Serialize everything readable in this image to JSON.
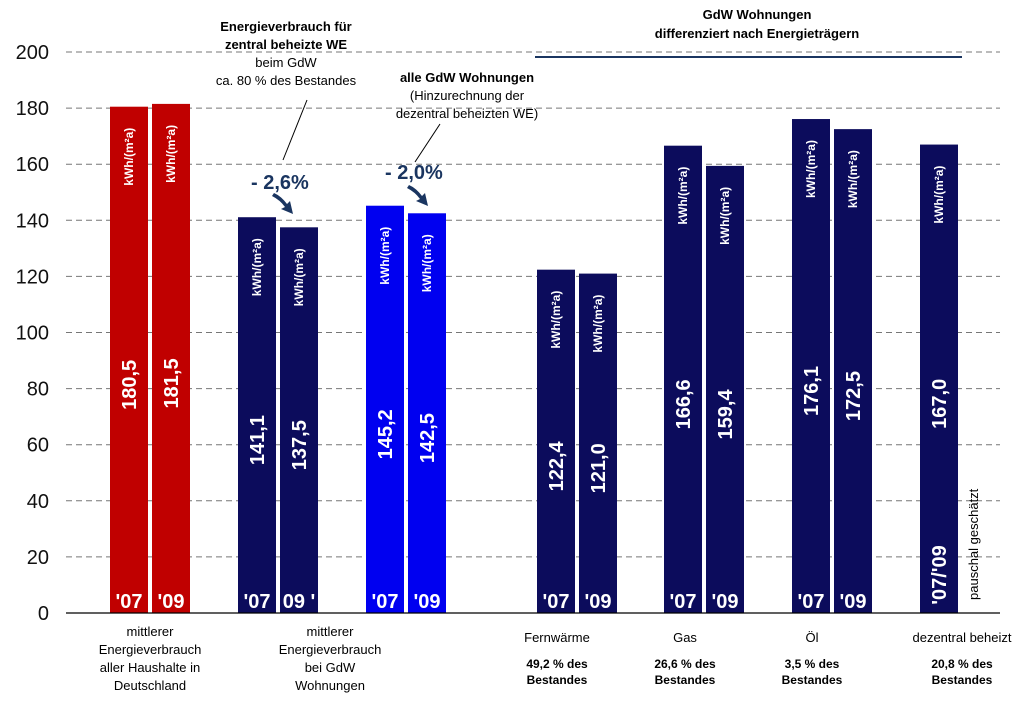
{
  "chart_data": {
    "type": "bar",
    "ylim": [
      0,
      200
    ],
    "yticks": [
      "0",
      "20",
      "40",
      "60",
      "80",
      "100",
      "120",
      "140",
      "160",
      "180",
      "200"
    ],
    "grid": true,
    "unit_label": "kWh/(m²a)",
    "colors": {
      "red": "#c00000",
      "navy": "#0c0c5c",
      "blue": "#0000f0"
    },
    "bars": [
      {
        "value": 180.5,
        "label": "180,5",
        "year": "'07",
        "color": "#c00000"
      },
      {
        "value": 181.5,
        "label": "181,5",
        "year": "'09",
        "color": "#c00000"
      },
      {
        "value": 141.1,
        "label": "141,1",
        "year": "'07",
        "color": "#0c0c5c"
      },
      {
        "value": 137.5,
        "label": "137,5",
        "year": "09 '",
        "color": "#0c0c5c"
      },
      {
        "value": 145.2,
        "label": "145,2",
        "year": "'07",
        "color": "#0000f0"
      },
      {
        "value": 142.5,
        "label": "142,5",
        "year": "'09",
        "color": "#0000f0"
      },
      {
        "value": 122.4,
        "label": "122,4",
        "year": "'07",
        "color": "#0c0c5c"
      },
      {
        "value": 121.0,
        "label": "121,0",
        "year": "'09",
        "color": "#0c0c5c"
      },
      {
        "value": 166.6,
        "label": "166,6",
        "year": "'07",
        "color": "#0c0c5c"
      },
      {
        "value": 159.4,
        "label": "159,4",
        "year": "'09",
        "color": "#0c0c5c"
      },
      {
        "value": 176.1,
        "label": "176,1",
        "year": "'07",
        "color": "#0c0c5c"
      },
      {
        "value": 172.5,
        "label": "172,5",
        "year": "'09",
        "color": "#0c0c5c"
      },
      {
        "value": 167.0,
        "label": "167,0",
        "year": "'07/'09",
        "color": "#0c0c5c"
      }
    ],
    "group_labels": [
      {
        "lines": [
          "mittlerer",
          "Energieverbrauch",
          "aller Haushalte in",
          "Deutschland"
        ]
      },
      {
        "lines": [
          "mittlerer",
          "Energieverbrauch",
          "bei GdW",
          "Wohnungen"
        ]
      },
      {
        "lines": [
          "Fernwärme"
        ],
        "share": [
          "49,2 % des",
          "Bestandes"
        ]
      },
      {
        "lines": [
          "Gas"
        ],
        "share": [
          "26,6 % des",
          "Bestandes"
        ]
      },
      {
        "lines": [
          "Öl"
        ],
        "share": [
          "3,5 % des",
          "Bestandes"
        ]
      },
      {
        "lines": [
          "dezentral beheizt"
        ],
        "share": [
          "20,8 % des",
          "Bestandes"
        ]
      }
    ],
    "annotations": {
      "zentral": [
        "Energieverbrauch für",
        "zentral beheizte WE",
        "beim GdW",
        "ca. 80 % des Bestandes"
      ],
      "alle": [
        "alle GdW Wohnungen",
        "(Hinzurechnung der",
        "dezentral beheizten WE)"
      ],
      "pct1": "- 2,6%",
      "pct2": "- 2,0%",
      "header": [
        "GdW Wohnungen",
        "differenziert nach Energieträgern"
      ],
      "estimate": "pauschal geschätzt"
    }
  }
}
